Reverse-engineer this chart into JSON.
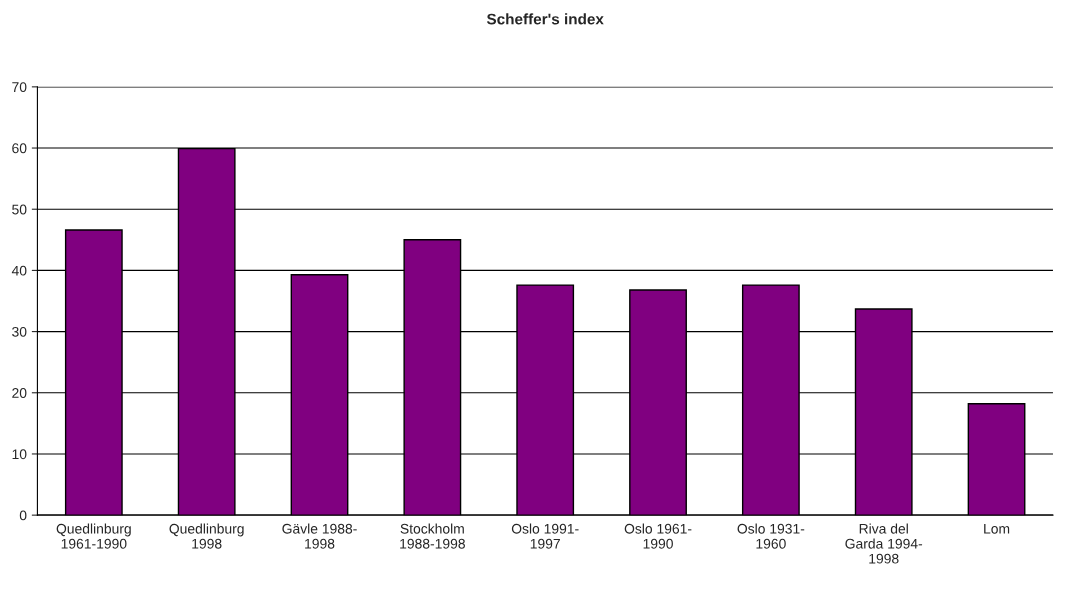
{
  "chart_data": {
    "type": "bar",
    "title": "Scheffer's index",
    "categories": [
      "Quedlinburg\n1961-1990",
      "Quedlinburg\n1998",
      "Gävle 1988-\n1998",
      "Stockholm\n1988-1998",
      "Oslo 1991-\n1997",
      "Oslo 1961-\n1990",
      "Oslo 1931-\n1960",
      "Riva del\nGarda 1994-\n1998",
      "Lom"
    ],
    "values": [
      46.6,
      59.9,
      39.3,
      45.0,
      37.6,
      36.8,
      37.6,
      33.7,
      18.2
    ],
    "color": "#800080",
    "ylim": [
      0,
      70
    ],
    "yticks": [
      0,
      10,
      20,
      30,
      40,
      50,
      60,
      70
    ],
    "grid": "y"
  }
}
